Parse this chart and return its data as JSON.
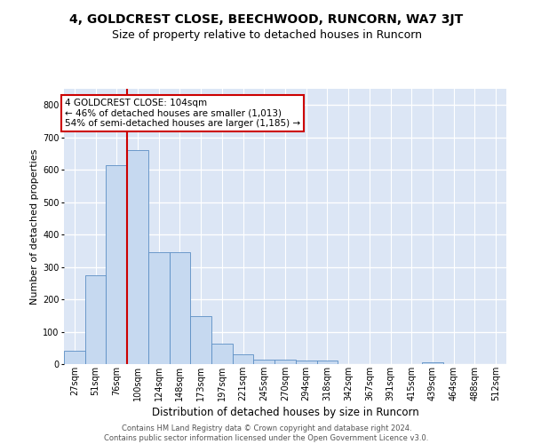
{
  "title": "4, GOLDCREST CLOSE, BEECHWOOD, RUNCORN, WA7 3JT",
  "subtitle": "Size of property relative to detached houses in Runcorn",
  "xlabel": "Distribution of detached houses by size in Runcorn",
  "ylabel": "Number of detached properties",
  "bar_values": [
    40,
    275,
    615,
    660,
    345,
    345,
    148,
    63,
    30,
    15,
    13,
    10,
    10,
    0,
    0,
    0,
    0,
    6,
    0,
    0,
    0
  ],
  "bar_labels": [
    "27sqm",
    "51sqm",
    "76sqm",
    "100sqm",
    "124sqm",
    "148sqm",
    "173sqm",
    "197sqm",
    "221sqm",
    "245sqm",
    "270sqm",
    "294sqm",
    "318sqm",
    "342sqm",
    "367sqm",
    "391sqm",
    "415sqm",
    "439sqm",
    "464sqm",
    "488sqm",
    "512sqm"
  ],
  "bar_color": "#c6d9f0",
  "bar_edge_color": "#5b8ec4",
  "vline_x": 3.0,
  "vline_color": "#cc0000",
  "annotation_line1": "4 GOLDCREST CLOSE: 104sqm",
  "annotation_line2": "← 46% of detached houses are smaller (1,013)",
  "annotation_line3": "54% of semi-detached houses are larger (1,185) →",
  "annotation_box_facecolor": "#ffffff",
  "annotation_box_edgecolor": "#cc0000",
  "ylim_max": 850,
  "yticks": [
    0,
    100,
    200,
    300,
    400,
    500,
    600,
    700,
    800
  ],
  "axes_facecolor": "#dce6f5",
  "grid_color": "#ffffff",
  "footer_line1": "Contains HM Land Registry data © Crown copyright and database right 2024.",
  "footer_line2": "Contains public sector information licensed under the Open Government Licence v3.0.",
  "title_fontsize": 10,
  "subtitle_fontsize": 9,
  "xlabel_fontsize": 8.5,
  "ylabel_fontsize": 8,
  "tick_fontsize": 7,
  "annotation_fontsize": 7.5,
  "footer_fontsize": 6
}
